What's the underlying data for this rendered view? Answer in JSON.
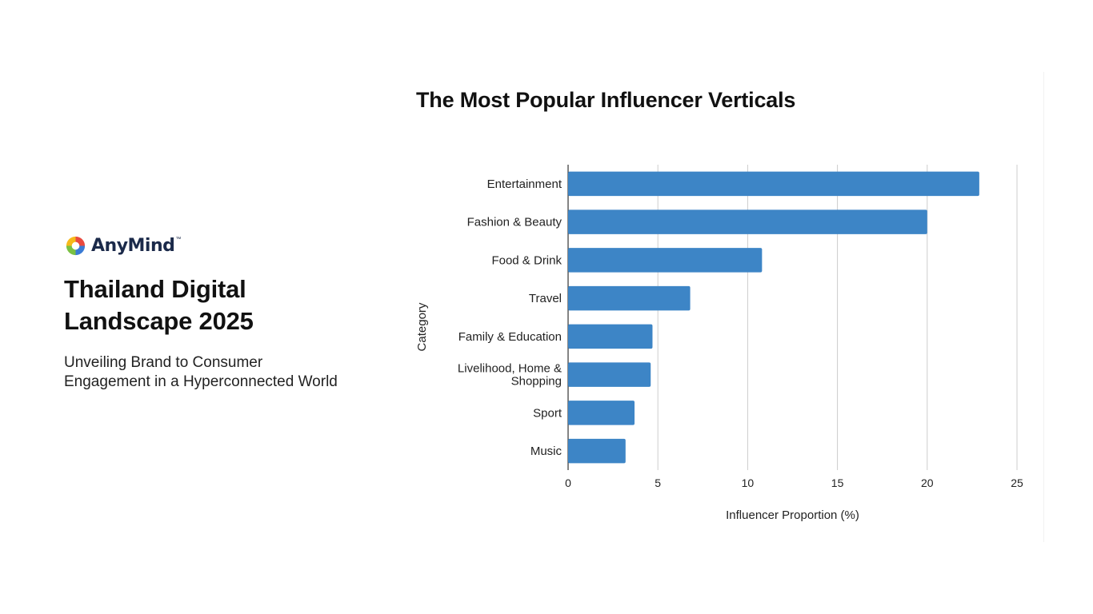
{
  "brand": {
    "name": "AnyMind",
    "tm": "™",
    "logo_icon": "anymind-logo-icon",
    "logo_colors": [
      "#e94a3f",
      "#3a7bd5",
      "#7ac143",
      "#f6b91a"
    ]
  },
  "report": {
    "title": "Thailand Digital\nLandscape 2025",
    "subtitle": "Unveiling Brand to Consumer\nEngagement in a Hyperconnected World"
  },
  "chart_data": {
    "type": "bar",
    "orientation": "horizontal",
    "title": "The Most Popular Influencer Verticals",
    "xlabel": "Influencer Proportion (%)",
    "ylabel": "Category",
    "categories": [
      "Entertainment",
      "Fashion & Beauty",
      "Food & Drink",
      "Travel",
      "Family & Education",
      "Livelihood, Home &\nShopping",
      "Sport",
      "Music"
    ],
    "values": [
      22.9,
      20.0,
      10.8,
      6.8,
      4.7,
      4.6,
      3.7,
      3.2
    ],
    "xlim": [
      0,
      25
    ],
    "xticks": [
      0,
      5,
      10,
      15,
      20,
      25
    ],
    "grid": true,
    "bar_color": "#3d85c6",
    "grid_color": "#cccccc",
    "axis_color": "#333333"
  }
}
